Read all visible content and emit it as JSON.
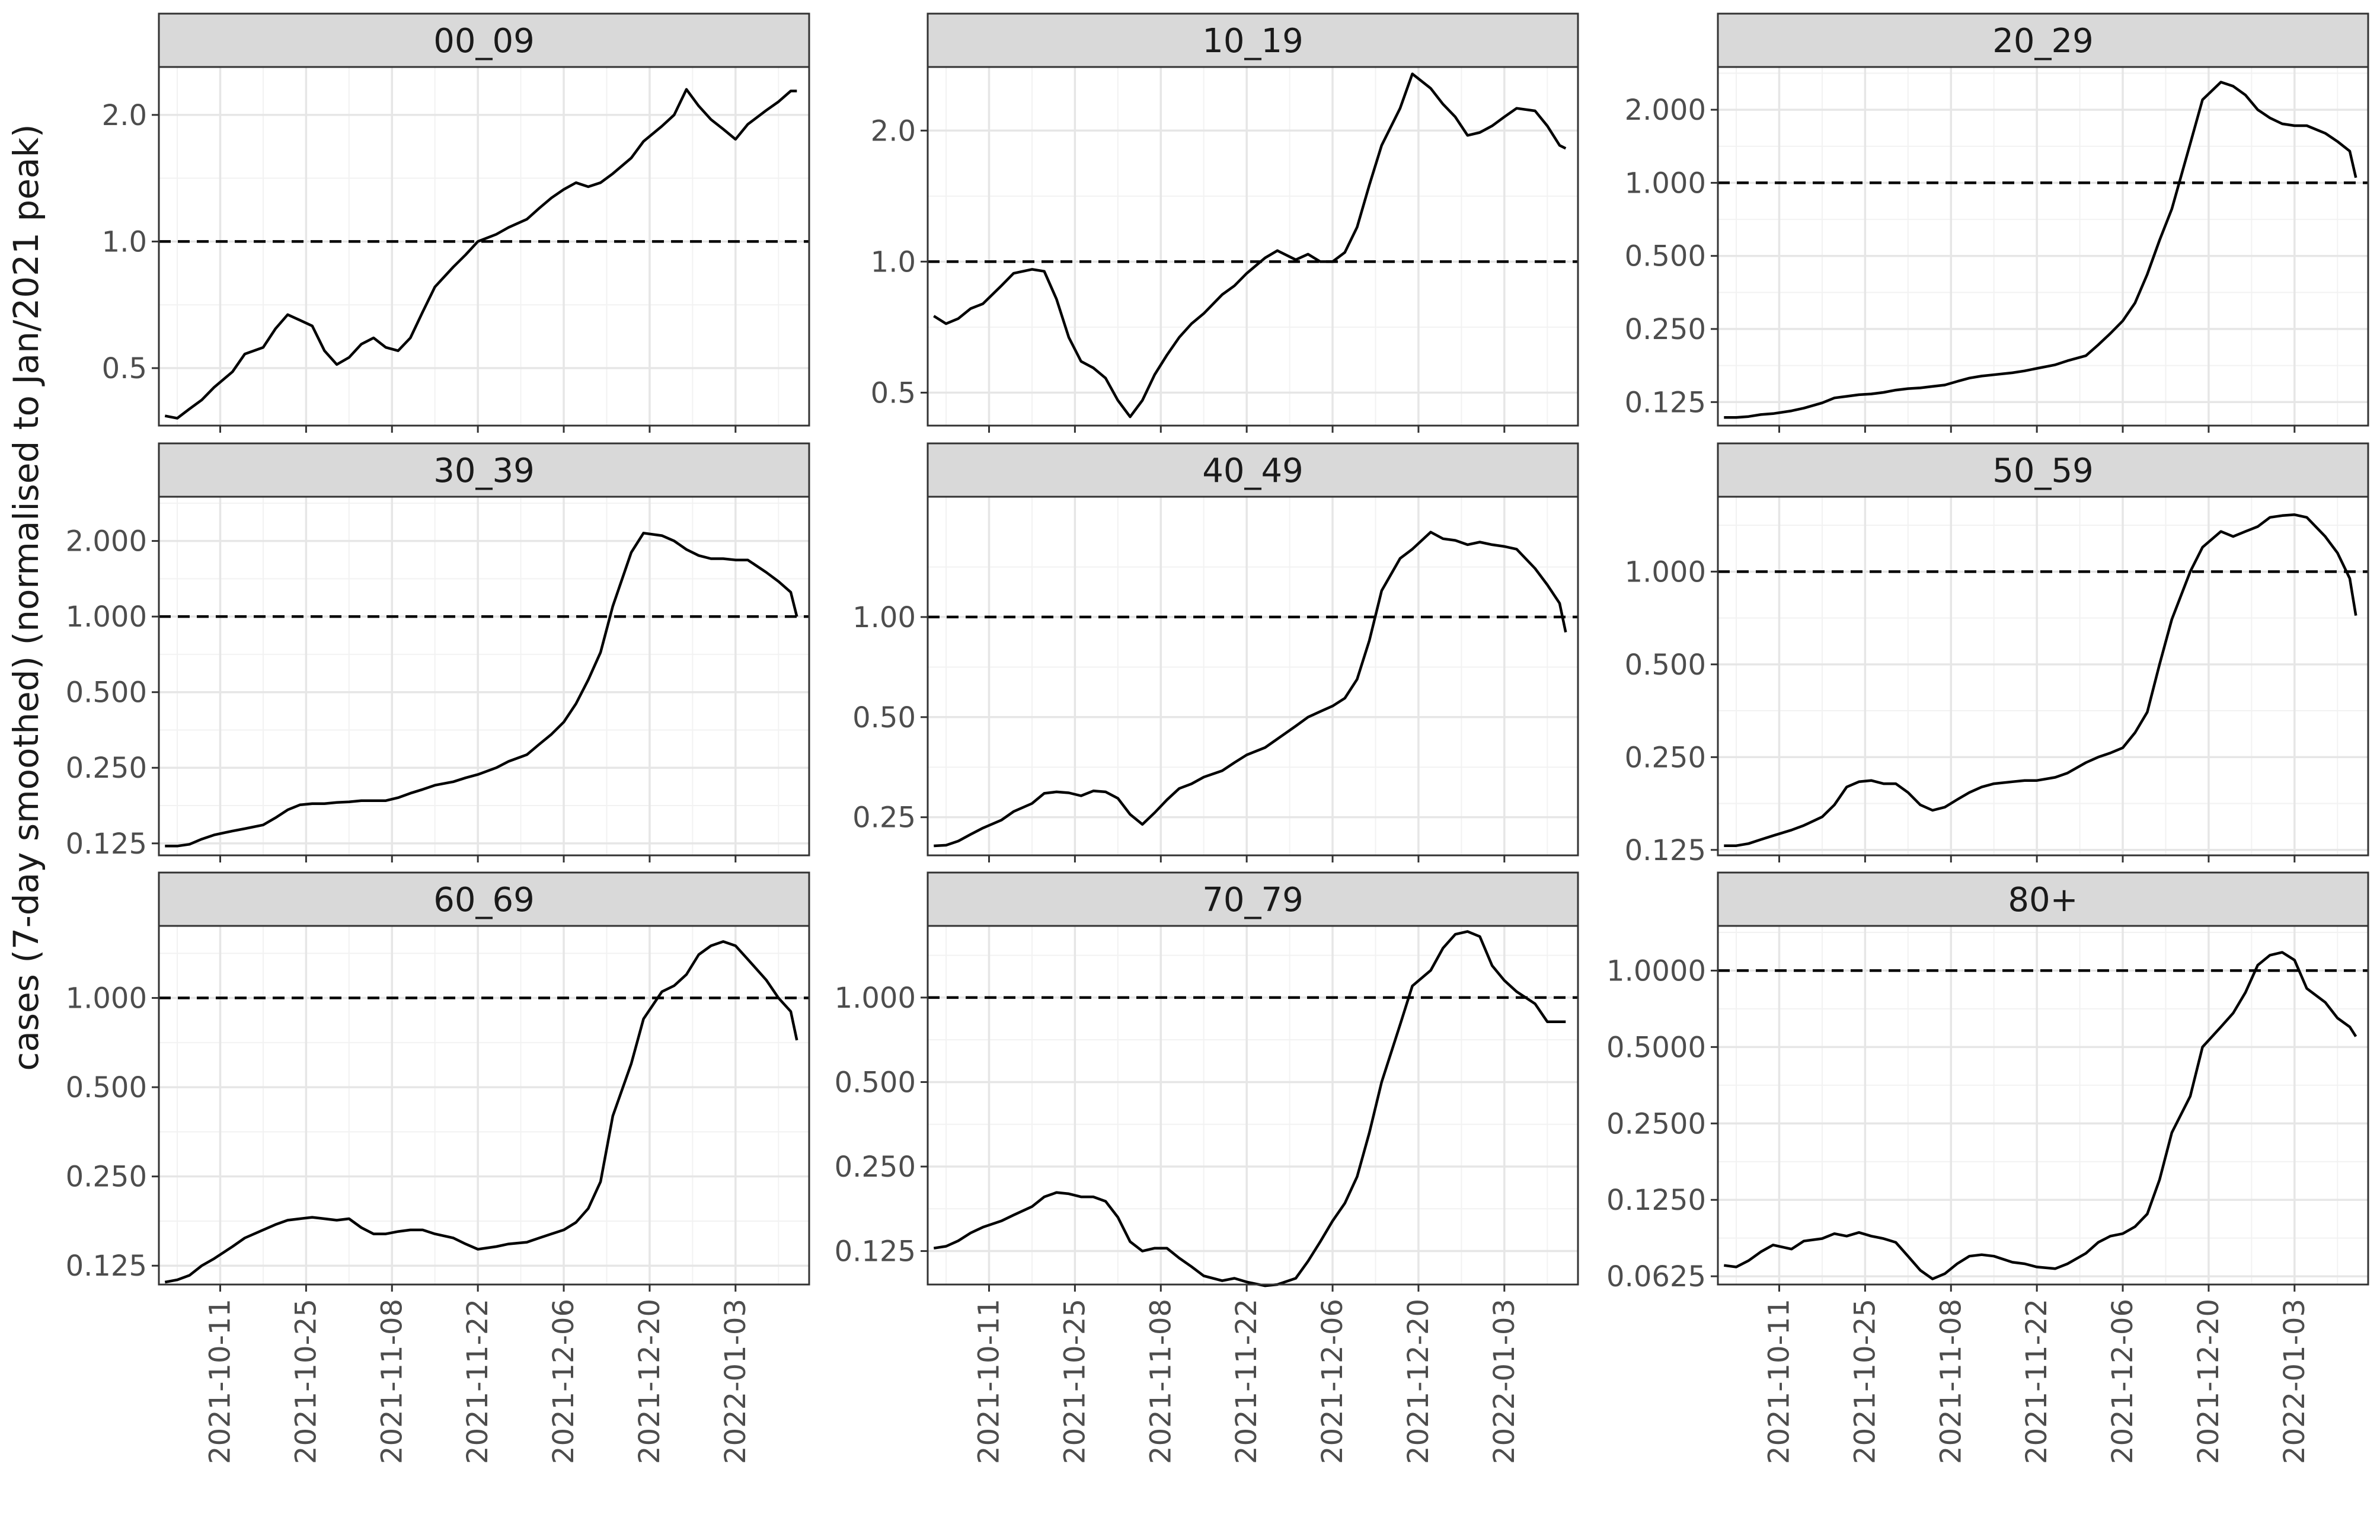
{
  "figure": {
    "ylabel": "cases (7-day smoothed) (normalised to Jan/2021 peak)",
    "reference_line": 1.0,
    "x_range": [
      "2021-10-01",
      "2022-01-15"
    ],
    "x_tick_labels": [
      "2021-10-11",
      "2021-10-25",
      "2021-11-08",
      "2021-11-22",
      "2021-12-06",
      "2021-12-20",
      "2022-01-03"
    ],
    "y_scale": "log2",
    "grid": true,
    "facet_strip_color": "#d9d9d9",
    "line_color": "#000000"
  },
  "chart_data": [
    {
      "type": "line",
      "title": "00_09",
      "ylim": [
        0.365,
        2.6
      ],
      "yticks": [
        0.5,
        1.0,
        2.0
      ],
      "ytick_labels": [
        "0.5",
        "1.0",
        "2.0"
      ],
      "x": [
        "2021-10-02",
        "2021-10-04",
        "2021-10-06",
        "2021-10-08",
        "2021-10-10",
        "2021-10-13",
        "2021-10-15",
        "2021-10-18",
        "2021-10-20",
        "2021-10-22",
        "2021-10-24",
        "2021-10-26",
        "2021-10-28",
        "2021-10-30",
        "2021-11-01",
        "2021-11-03",
        "2021-11-05",
        "2021-11-07",
        "2021-11-09",
        "2021-11-11",
        "2021-11-13",
        "2021-11-15",
        "2021-11-18",
        "2021-11-20",
        "2021-11-22",
        "2021-11-25",
        "2021-11-27",
        "2021-11-30",
        "2021-12-02",
        "2021-12-04",
        "2021-12-06",
        "2021-12-08",
        "2021-12-10",
        "2021-12-12",
        "2021-12-14",
        "2021-12-17",
        "2021-12-19",
        "2021-12-22",
        "2021-12-24",
        "2021-12-26",
        "2021-12-28",
        "2021-12-30",
        "2022-01-01",
        "2022-01-03",
        "2022-01-05",
        "2022-01-08",
        "2022-01-10",
        "2022-01-12",
        "2022-01-13"
      ],
      "values": [
        0.385,
        0.38,
        0.4,
        0.42,
        0.45,
        0.49,
        0.54,
        0.56,
        0.62,
        0.67,
        0.65,
        0.63,
        0.55,
        0.51,
        0.53,
        0.57,
        0.59,
        0.56,
        0.55,
        0.59,
        0.68,
        0.78,
        0.87,
        0.93,
        1.0,
        1.04,
        1.08,
        1.13,
        1.2,
        1.27,
        1.33,
        1.38,
        1.35,
        1.38,
        1.45,
        1.58,
        1.73,
        1.88,
        2.0,
        2.3,
        2.1,
        1.95,
        1.85,
        1.75,
        1.9,
        2.05,
        2.15,
        2.28,
        2.28
      ]
    },
    {
      "type": "line",
      "title": "10_19",
      "ylim": [
        0.42,
        2.8
      ],
      "yticks": [
        0.5,
        1.0,
        2.0
      ],
      "ytick_labels": [
        "0.5",
        "1.0",
        "2.0"
      ],
      "x": [
        "2021-10-02",
        "2021-10-04",
        "2021-10-06",
        "2021-10-08",
        "2021-10-10",
        "2021-10-13",
        "2021-10-15",
        "2021-10-18",
        "2021-10-20",
        "2021-10-22",
        "2021-10-24",
        "2021-10-26",
        "2021-10-28",
        "2021-10-30",
        "2021-11-01",
        "2021-11-03",
        "2021-11-05",
        "2021-11-07",
        "2021-11-09",
        "2021-11-11",
        "2021-11-13",
        "2021-11-15",
        "2021-11-18",
        "2021-11-20",
        "2021-11-22",
        "2021-11-25",
        "2021-11-27",
        "2021-11-30",
        "2021-12-02",
        "2021-12-04",
        "2021-12-06",
        "2021-12-08",
        "2021-12-10",
        "2021-12-12",
        "2021-12-14",
        "2021-12-17",
        "2021-12-19",
        "2021-12-22",
        "2021-12-24",
        "2021-12-26",
        "2021-12-28",
        "2021-12-30",
        "2022-01-01",
        "2022-01-03",
        "2022-01-05",
        "2022-01-08",
        "2022-01-10",
        "2022-01-12",
        "2022-01-13"
      ],
      "values": [
        0.75,
        0.72,
        0.74,
        0.78,
        0.8,
        0.88,
        0.94,
        0.96,
        0.95,
        0.82,
        0.67,
        0.59,
        0.57,
        0.54,
        0.48,
        0.44,
        0.48,
        0.55,
        0.61,
        0.67,
        0.72,
        0.76,
        0.84,
        0.88,
        0.94,
        1.02,
        1.06,
        1.01,
        1.04,
        1.0,
        1.0,
        1.05,
        1.2,
        1.5,
        1.85,
        2.25,
        2.7,
        2.5,
        2.3,
        2.15,
        1.95,
        1.98,
        2.05,
        2.15,
        2.25,
        2.22,
        2.05,
        1.85,
        1.82
      ]
    },
    {
      "type": "line",
      "title": "20_29",
      "ylim": [
        0.1,
        3.0
      ],
      "yticks": [
        0.125,
        0.25,
        0.5,
        1.0,
        2.0
      ],
      "ytick_labels": [
        "0.125",
        "0.250",
        "0.500",
        "1.000",
        "2.000"
      ],
      "x": [
        "2021-10-02",
        "2021-10-04",
        "2021-10-06",
        "2021-10-08",
        "2021-10-10",
        "2021-10-13",
        "2021-10-15",
        "2021-10-18",
        "2021-10-20",
        "2021-10-22",
        "2021-10-24",
        "2021-10-26",
        "2021-10-28",
        "2021-10-30",
        "2021-11-01",
        "2021-11-03",
        "2021-11-05",
        "2021-11-07",
        "2021-11-09",
        "2021-11-11",
        "2021-11-13",
        "2021-11-15",
        "2021-11-18",
        "2021-11-20",
        "2021-11-22",
        "2021-11-25",
        "2021-11-27",
        "2021-11-30",
        "2021-12-02",
        "2021-12-04",
        "2021-12-06",
        "2021-12-08",
        "2021-12-10",
        "2021-12-12",
        "2021-12-14",
        "2021-12-17",
        "2021-12-19",
        "2021-12-22",
        "2021-12-24",
        "2021-12-26",
        "2021-12-28",
        "2021-12-30",
        "2022-01-01",
        "2022-01-03",
        "2022-01-05",
        "2022-01-08",
        "2022-01-10",
        "2022-01-12",
        "2022-01-13"
      ],
      "values": [
        0.108,
        0.108,
        0.109,
        0.111,
        0.112,
        0.115,
        0.118,
        0.124,
        0.13,
        0.132,
        0.134,
        0.135,
        0.137,
        0.14,
        0.142,
        0.143,
        0.145,
        0.147,
        0.152,
        0.157,
        0.16,
        0.162,
        0.165,
        0.168,
        0.172,
        0.178,
        0.185,
        0.194,
        0.215,
        0.24,
        0.27,
        0.32,
        0.42,
        0.58,
        0.78,
        1.45,
        2.2,
        2.6,
        2.5,
        2.3,
        2.0,
        1.85,
        1.75,
        1.72,
        1.72,
        1.6,
        1.48,
        1.35,
        1.05
      ]
    },
    {
      "type": "line",
      "title": "30_39",
      "ylim": [
        0.112,
        3.0
      ],
      "yticks": [
        0.125,
        0.25,
        0.5,
        1.0,
        2.0
      ],
      "ytick_labels": [
        "0.125",
        "0.250",
        "0.500",
        "1.000",
        "2.000"
      ],
      "x": [
        "2021-10-02",
        "2021-10-04",
        "2021-10-06",
        "2021-10-08",
        "2021-10-10",
        "2021-10-13",
        "2021-10-15",
        "2021-10-18",
        "2021-10-20",
        "2021-10-22",
        "2021-10-24",
        "2021-10-26",
        "2021-10-28",
        "2021-10-30",
        "2021-11-01",
        "2021-11-03",
        "2021-11-05",
        "2021-11-07",
        "2021-11-09",
        "2021-11-11",
        "2021-11-13",
        "2021-11-15",
        "2021-11-18",
        "2021-11-20",
        "2021-11-22",
        "2021-11-25",
        "2021-11-27",
        "2021-11-30",
        "2021-12-02",
        "2021-12-04",
        "2021-12-06",
        "2021-12-08",
        "2021-12-10",
        "2021-12-12",
        "2021-12-14",
        "2021-12-17",
        "2021-12-19",
        "2021-12-22",
        "2021-12-24",
        "2021-12-26",
        "2021-12-28",
        "2021-12-30",
        "2022-01-01",
        "2022-01-03",
        "2022-01-05",
        "2022-01-08",
        "2022-01-10",
        "2022-01-12",
        "2022-01-13"
      ],
      "values": [
        0.122,
        0.122,
        0.124,
        0.13,
        0.135,
        0.14,
        0.143,
        0.148,
        0.158,
        0.17,
        0.178,
        0.18,
        0.18,
        0.182,
        0.183,
        0.185,
        0.185,
        0.185,
        0.19,
        0.198,
        0.205,
        0.213,
        0.22,
        0.228,
        0.235,
        0.25,
        0.265,
        0.282,
        0.31,
        0.34,
        0.38,
        0.45,
        0.56,
        0.72,
        1.1,
        1.8,
        2.15,
        2.1,
        2.0,
        1.85,
        1.75,
        1.7,
        1.7,
        1.68,
        1.68,
        1.5,
        1.38,
        1.25,
        1.0
      ]
    },
    {
      "type": "line",
      "title": "40_49",
      "ylim": [
        0.192,
        2.3
      ],
      "yticks": [
        0.25,
        0.5,
        1.0
      ],
      "ytick_labels": [
        "0.25",
        "0.50",
        "1.00"
      ],
      "x": [
        "2021-10-02",
        "2021-10-04",
        "2021-10-06",
        "2021-10-08",
        "2021-10-10",
        "2021-10-13",
        "2021-10-15",
        "2021-10-18",
        "2021-10-20",
        "2021-10-22",
        "2021-10-24",
        "2021-10-26",
        "2021-10-28",
        "2021-10-30",
        "2021-11-01",
        "2021-11-03",
        "2021-11-05",
        "2021-11-07",
        "2021-11-09",
        "2021-11-11",
        "2021-11-13",
        "2021-11-15",
        "2021-11-18",
        "2021-11-20",
        "2021-11-22",
        "2021-11-25",
        "2021-11-27",
        "2021-11-30",
        "2021-12-02",
        "2021-12-04",
        "2021-12-06",
        "2021-12-08",
        "2021-12-10",
        "2021-12-12",
        "2021-12-14",
        "2021-12-17",
        "2021-12-19",
        "2021-12-22",
        "2021-12-24",
        "2021-12-26",
        "2021-12-28",
        "2021-12-30",
        "2022-01-01",
        "2022-01-03",
        "2022-01-05",
        "2022-01-08",
        "2022-01-10",
        "2022-01-12",
        "2022-01-13"
      ],
      "values": [
        0.205,
        0.206,
        0.212,
        0.222,
        0.232,
        0.245,
        0.26,
        0.275,
        0.295,
        0.298,
        0.296,
        0.29,
        0.3,
        0.298,
        0.285,
        0.255,
        0.238,
        0.258,
        0.282,
        0.305,
        0.315,
        0.33,
        0.345,
        0.365,
        0.385,
        0.405,
        0.43,
        0.47,
        0.5,
        0.52,
        0.54,
        0.57,
        0.65,
        0.85,
        1.2,
        1.5,
        1.6,
        1.8,
        1.72,
        1.7,
        1.65,
        1.68,
        1.65,
        1.63,
        1.6,
        1.4,
        1.25,
        1.1,
        0.9
      ]
    },
    {
      "type": "line",
      "title": "50_59",
      "ylim": [
        0.12,
        1.75
      ],
      "yticks": [
        0.125,
        0.25,
        0.5,
        1.0
      ],
      "ytick_labels": [
        "0.125",
        "0.250",
        "0.500",
        "1.000"
      ],
      "x": [
        "2021-10-02",
        "2021-10-04",
        "2021-10-06",
        "2021-10-08",
        "2021-10-10",
        "2021-10-13",
        "2021-10-15",
        "2021-10-18",
        "2021-10-20",
        "2021-10-22",
        "2021-10-24",
        "2021-10-26",
        "2021-10-28",
        "2021-10-30",
        "2021-11-01",
        "2021-11-03",
        "2021-11-05",
        "2021-11-07",
        "2021-11-09",
        "2021-11-11",
        "2021-11-13",
        "2021-11-15",
        "2021-11-18",
        "2021-11-20",
        "2021-11-22",
        "2021-11-25",
        "2021-11-27",
        "2021-11-30",
        "2021-12-02",
        "2021-12-04",
        "2021-12-06",
        "2021-12-08",
        "2021-12-10",
        "2021-12-12",
        "2021-12-14",
        "2021-12-17",
        "2021-12-19",
        "2021-12-22",
        "2021-12-24",
        "2021-12-26",
        "2021-12-28",
        "2021-12-30",
        "2022-01-01",
        "2022-01-03",
        "2022-01-05",
        "2022-01-08",
        "2022-01-10",
        "2022-01-12",
        "2022-01-13"
      ],
      "values": [
        0.129,
        0.129,
        0.131,
        0.135,
        0.139,
        0.145,
        0.15,
        0.16,
        0.175,
        0.2,
        0.208,
        0.21,
        0.205,
        0.205,
        0.192,
        0.175,
        0.168,
        0.172,
        0.182,
        0.192,
        0.2,
        0.205,
        0.208,
        0.21,
        0.21,
        0.215,
        0.222,
        0.24,
        0.25,
        0.258,
        0.268,
        0.3,
        0.35,
        0.5,
        0.7,
        1.0,
        1.2,
        1.35,
        1.3,
        1.35,
        1.4,
        1.5,
        1.52,
        1.53,
        1.5,
        1.3,
        1.15,
        0.95,
        0.72
      ]
    },
    {
      "type": "line",
      "title": "60_69",
      "ylim": [
        0.108,
        1.75
      ],
      "yticks": [
        0.125,
        0.25,
        0.5,
        1.0
      ],
      "ytick_labels": [
        "0.125",
        "0.250",
        "0.500",
        "1.000"
      ],
      "x": [
        "2021-10-02",
        "2021-10-04",
        "2021-10-06",
        "2021-10-08",
        "2021-10-10",
        "2021-10-13",
        "2021-10-15",
        "2021-10-18",
        "2021-10-20",
        "2021-10-22",
        "2021-10-24",
        "2021-10-26",
        "2021-10-28",
        "2021-10-30",
        "2021-11-01",
        "2021-11-03",
        "2021-11-05",
        "2021-11-07",
        "2021-11-09",
        "2021-11-11",
        "2021-11-13",
        "2021-11-15",
        "2021-11-18",
        "2021-11-20",
        "2021-11-22",
        "2021-11-25",
        "2021-11-27",
        "2021-11-30",
        "2021-12-02",
        "2021-12-04",
        "2021-12-06",
        "2021-12-08",
        "2021-12-10",
        "2021-12-12",
        "2021-12-14",
        "2021-12-17",
        "2021-12-19",
        "2021-12-22",
        "2021-12-24",
        "2021-12-26",
        "2021-12-28",
        "2021-12-30",
        "2022-01-01",
        "2022-01-03",
        "2022-01-05",
        "2022-01-08",
        "2022-01-10",
        "2022-01-12",
        "2022-01-13"
      ],
      "values": [
        0.11,
        0.112,
        0.116,
        0.125,
        0.132,
        0.145,
        0.155,
        0.165,
        0.172,
        0.178,
        0.18,
        0.182,
        0.18,
        0.178,
        0.18,
        0.168,
        0.16,
        0.16,
        0.163,
        0.165,
        0.165,
        0.16,
        0.155,
        0.148,
        0.142,
        0.145,
        0.148,
        0.15,
        0.155,
        0.16,
        0.165,
        0.175,
        0.195,
        0.24,
        0.4,
        0.6,
        0.85,
        1.05,
        1.1,
        1.2,
        1.4,
        1.5,
        1.55,
        1.5,
        1.35,
        1.15,
        1.0,
        0.9,
        0.72
      ]
    },
    {
      "type": "line",
      "title": "70_79",
      "ylim": [
        0.095,
        1.8
      ],
      "yticks": [
        0.125,
        0.25,
        0.5,
        1.0
      ],
      "ytick_labels": [
        "0.125",
        "0.250",
        "0.500",
        "1.000"
      ],
      "x": [
        "2021-10-02",
        "2021-10-04",
        "2021-10-06",
        "2021-10-08",
        "2021-10-10",
        "2021-10-13",
        "2021-10-15",
        "2021-10-18",
        "2021-10-20",
        "2021-10-22",
        "2021-10-24",
        "2021-10-26",
        "2021-10-28",
        "2021-10-30",
        "2021-11-01",
        "2021-11-03",
        "2021-11-05",
        "2021-11-07",
        "2021-11-09",
        "2021-11-11",
        "2021-11-13",
        "2021-11-15",
        "2021-11-18",
        "2021-11-20",
        "2021-11-22",
        "2021-11-25",
        "2021-11-27",
        "2021-11-30",
        "2021-12-02",
        "2021-12-04",
        "2021-12-06",
        "2021-12-08",
        "2021-12-10",
        "2021-12-12",
        "2021-12-14",
        "2021-12-17",
        "2021-12-19",
        "2021-12-22",
        "2021-12-24",
        "2021-12-26",
        "2021-12-28",
        "2021-12-30",
        "2022-01-01",
        "2022-01-03",
        "2022-01-05",
        "2022-01-08",
        "2022-01-10",
        "2022-01-12",
        "2022-01-13"
      ],
      "values": [
        0.128,
        0.13,
        0.136,
        0.145,
        0.152,
        0.16,
        0.168,
        0.18,
        0.195,
        0.202,
        0.2,
        0.195,
        0.195,
        0.188,
        0.165,
        0.135,
        0.125,
        0.128,
        0.128,
        0.118,
        0.11,
        0.102,
        0.098,
        0.1,
        0.097,
        0.094,
        0.095,
        0.1,
        0.115,
        0.135,
        0.16,
        0.185,
        0.23,
        0.33,
        0.5,
        0.8,
        1.1,
        1.25,
        1.5,
        1.68,
        1.72,
        1.65,
        1.3,
        1.15,
        1.05,
        0.95,
        0.82,
        0.82,
        0.82
      ]
    },
    {
      "type": "line",
      "title": "80+",
      "ylim": [
        0.058,
        1.5
      ],
      "yticks": [
        0.0625,
        0.125,
        0.25,
        0.5,
        1.0
      ],
      "ytick_labels": [
        "0.0625",
        "0.1250",
        "0.2500",
        "0.5000",
        "1.0000"
      ],
      "x": [
        "2021-10-02",
        "2021-10-04",
        "2021-10-06",
        "2021-10-08",
        "2021-10-10",
        "2021-10-13",
        "2021-10-15",
        "2021-10-18",
        "2021-10-20",
        "2021-10-22",
        "2021-10-24",
        "2021-10-26",
        "2021-10-28",
        "2021-10-30",
        "2021-11-01",
        "2021-11-03",
        "2021-11-05",
        "2021-11-07",
        "2021-11-09",
        "2021-11-11",
        "2021-11-13",
        "2021-11-15",
        "2021-11-18",
        "2021-11-20",
        "2021-11-22",
        "2021-11-25",
        "2021-11-27",
        "2021-11-30",
        "2021-12-02",
        "2021-12-04",
        "2021-12-06",
        "2021-12-08",
        "2021-12-10",
        "2021-12-12",
        "2021-12-14",
        "2021-12-17",
        "2021-12-19",
        "2021-12-22",
        "2021-12-24",
        "2021-12-26",
        "2021-12-28",
        "2021-12-30",
        "2022-01-01",
        "2022-01-03",
        "2022-01-05",
        "2022-01-08",
        "2022-01-10",
        "2022-01-12",
        "2022-01-13"
      ],
      "values": [
        0.069,
        0.068,
        0.072,
        0.078,
        0.083,
        0.08,
        0.086,
        0.088,
        0.092,
        0.09,
        0.093,
        0.09,
        0.088,
        0.085,
        0.075,
        0.066,
        0.061,
        0.064,
        0.07,
        0.075,
        0.076,
        0.075,
        0.071,
        0.07,
        0.068,
        0.067,
        0.07,
        0.077,
        0.085,
        0.09,
        0.092,
        0.098,
        0.11,
        0.15,
        0.23,
        0.32,
        0.5,
        0.6,
        0.68,
        0.82,
        1.05,
        1.15,
        1.18,
        1.1,
        0.85,
        0.75,
        0.65,
        0.6,
        0.55
      ]
    }
  ]
}
